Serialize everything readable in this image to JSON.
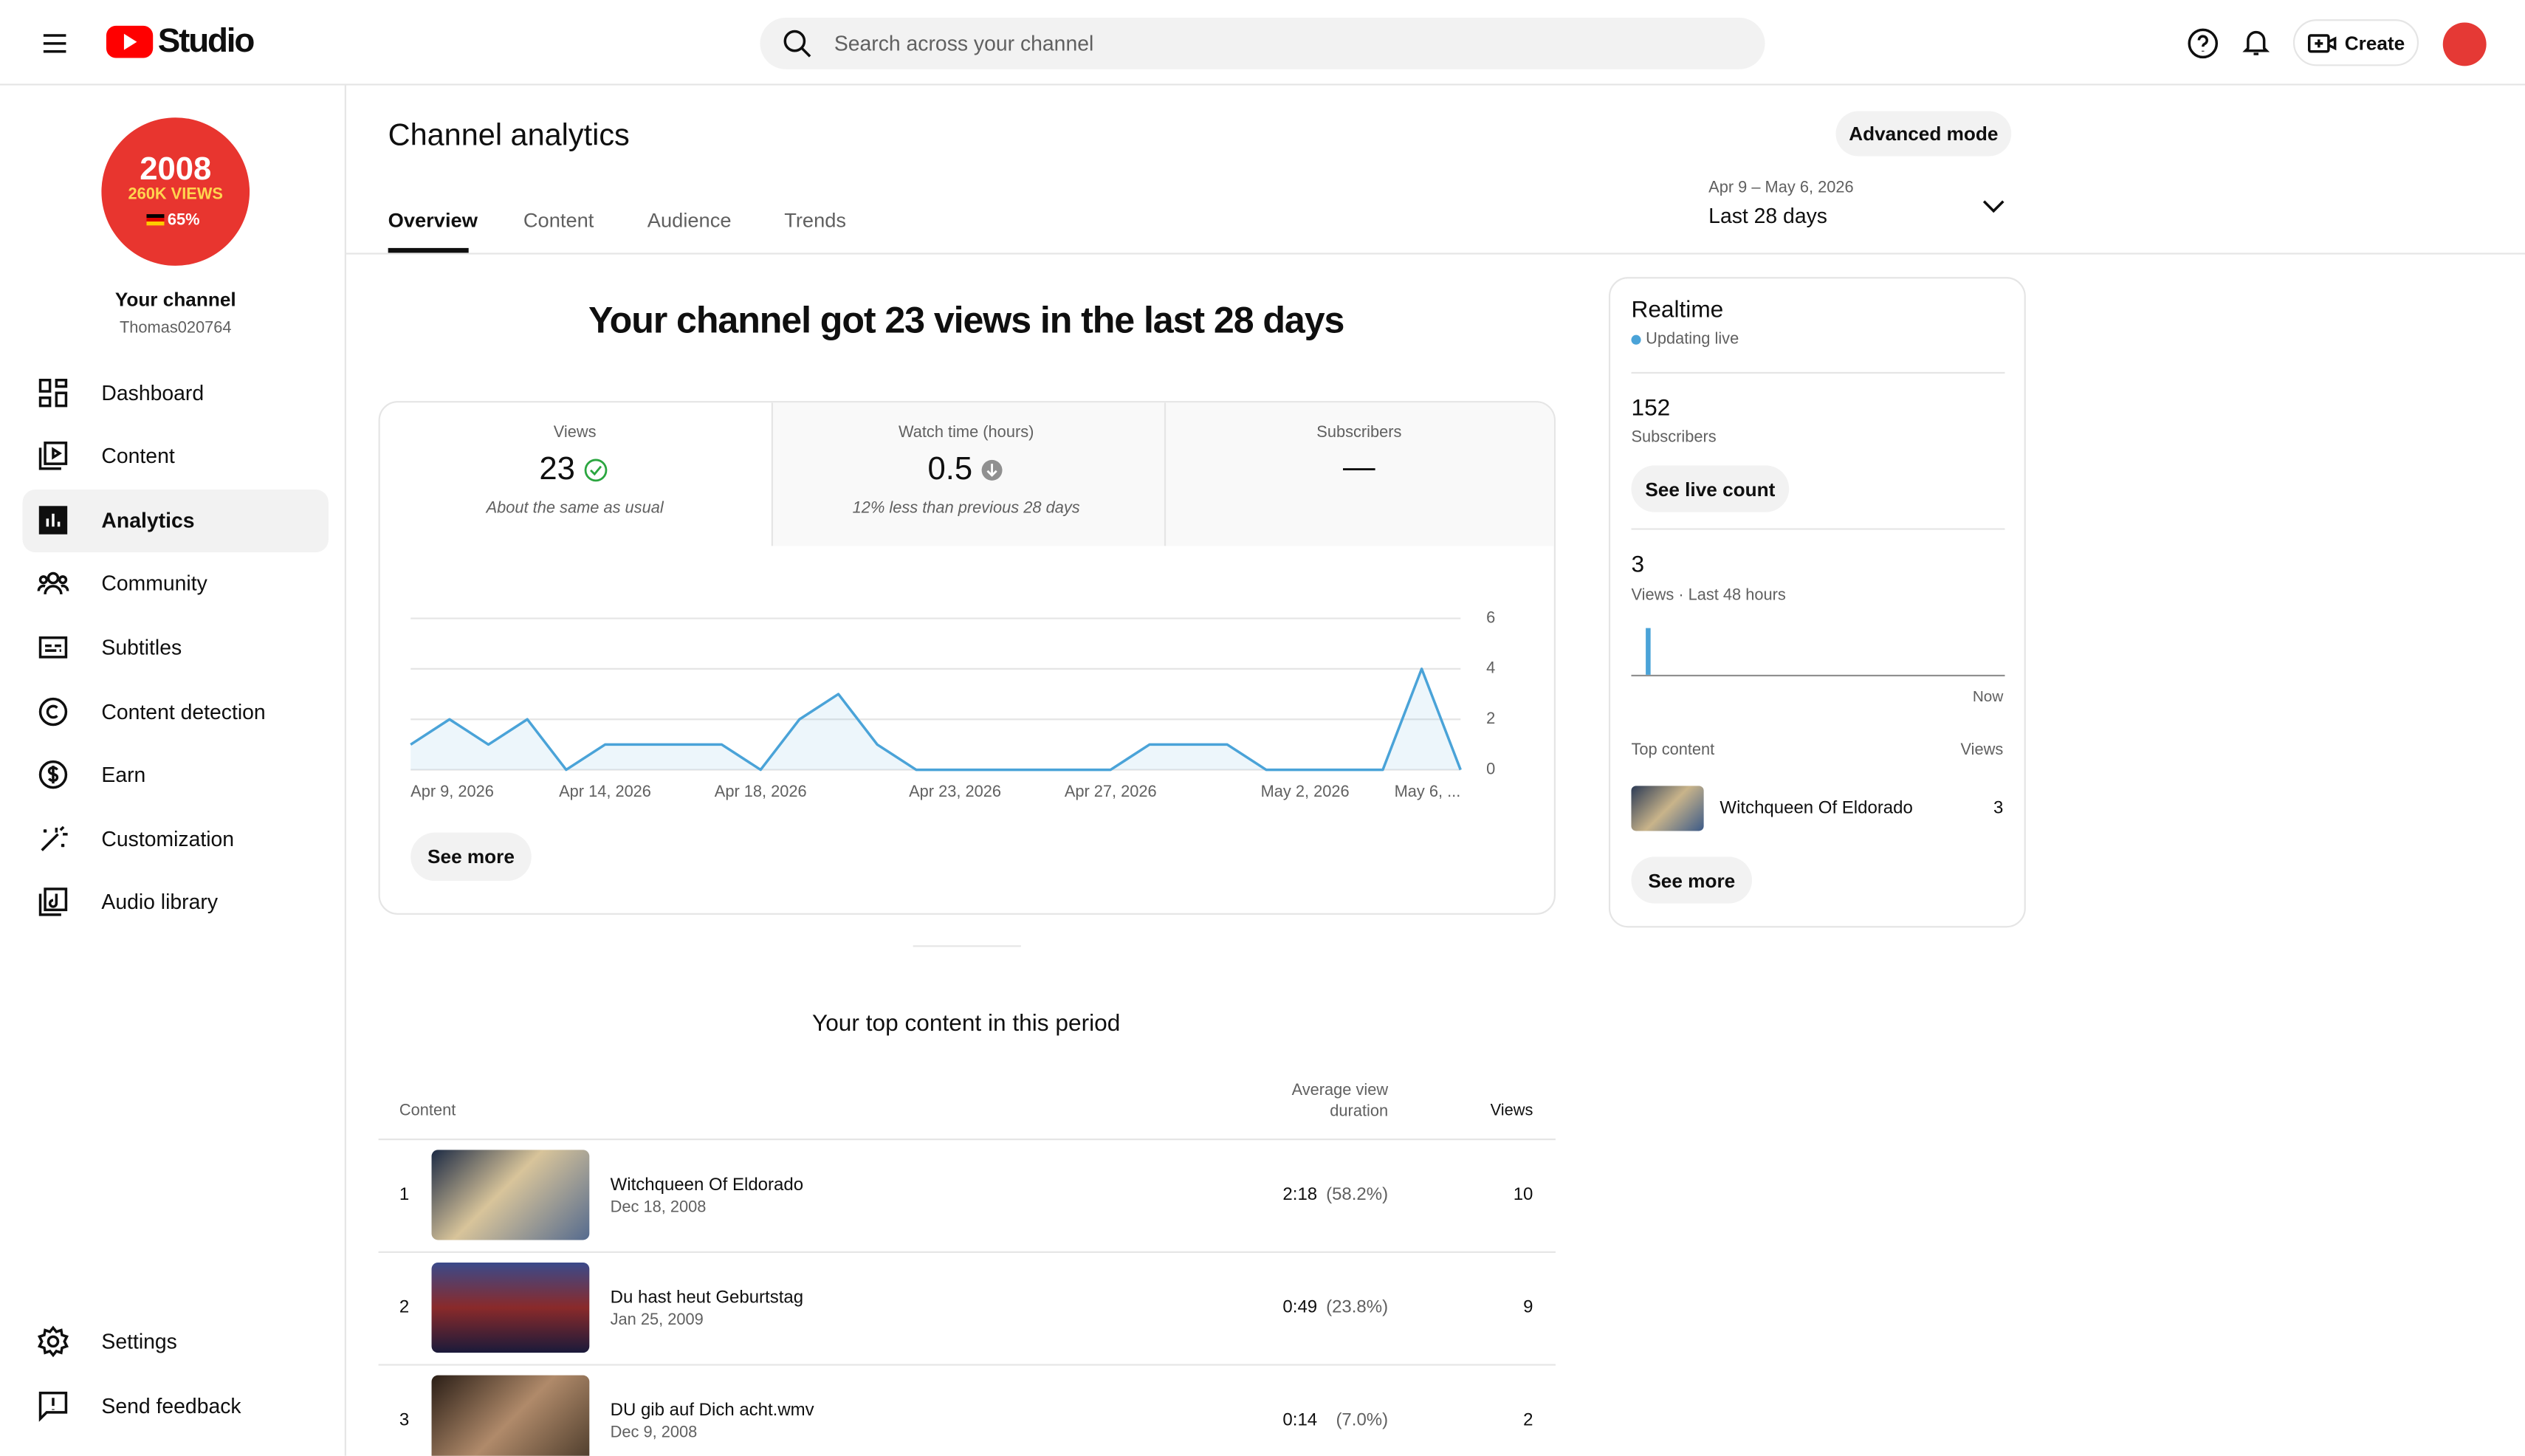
{
  "topbar": {
    "logo_text": "Studio",
    "search_placeholder": "Search across your channel",
    "create": "Create"
  },
  "avatar": {
    "line1": "2008",
    "line2": "260K VIEWS",
    "line3": "65%"
  },
  "sidebar": {
    "channel_name": "Your channel",
    "handle": "Thomas020764",
    "nav": [
      "Dashboard",
      "Content",
      "Analytics",
      "Community",
      "Subtitles",
      "Content detection",
      "Earn",
      "Customization",
      "Audio library"
    ],
    "bottom": [
      "Settings",
      "Send feedback"
    ]
  },
  "header": {
    "title": "Channel analytics",
    "advanced": "Advanced mode",
    "tabs": [
      "Overview",
      "Content",
      "Audience",
      "Trends"
    ],
    "date_range": "Apr 9 – May 6, 2026",
    "period": "Last 28 days"
  },
  "summary": {
    "headline": "Your channel got 23 views in the last 28 days",
    "metrics": [
      {
        "label": "Views",
        "value": "23",
        "note": "About the same as usual"
      },
      {
        "label": "Watch time (hours)",
        "value": "0.5",
        "note": "12% less than previous 28 days"
      },
      {
        "label": "Subscribers",
        "value": "—"
      }
    ],
    "see_more": "See more"
  },
  "chart_data": {
    "type": "line",
    "categories": [
      "Apr 9, 2026",
      null,
      null,
      null,
      null,
      "Apr 14, 2026",
      null,
      null,
      null,
      "Apr 18, 2026",
      null,
      null,
      null,
      null,
      "Apr 23, 2026",
      null,
      null,
      null,
      "Apr 27, 2026",
      null,
      null,
      null,
      null,
      "May 2, 2026",
      null,
      null,
      null,
      "May 6, ..."
    ],
    "values": [
      1,
      2,
      1,
      2,
      0,
      1,
      1,
      1,
      1,
      0,
      2,
      3,
      1,
      0,
      0,
      0,
      0,
      0,
      0,
      1,
      1,
      1,
      0,
      0,
      0,
      0,
      4,
      0
    ],
    "color": "#4aa3d8",
    "ylim": [
      0,
      6
    ],
    "yticks": [
      0,
      2,
      4,
      6
    ],
    "grid": true
  },
  "realtime": {
    "title": "Realtime",
    "status": "Updating live",
    "subscribers": "152",
    "subscribers_label": "Subscribers",
    "live_button": "See live count",
    "views": "3",
    "views_label": "Views · Last 48 hours",
    "now": "Now",
    "top_content": "Top content",
    "views_col": "Views",
    "item_title": "Witchqueen Of Eldorado",
    "item_views": "3",
    "see_more": "See more"
  },
  "top_content": {
    "title": "Your top content in this period",
    "columns": [
      "Content",
      "Average view duration",
      "Views"
    ],
    "rows": [
      {
        "rank": "1",
        "title": "Witchqueen Of Eldorado",
        "date": "Dec 18, 2008",
        "duration": "2:18",
        "percent": "(58.2%)",
        "views": "10"
      },
      {
        "rank": "2",
        "title": "Du hast heut Geburtstag",
        "date": "Jan 25, 2009",
        "duration": "0:49",
        "percent": "(23.8%)",
        "views": "9"
      },
      {
        "rank": "3",
        "title": "DU gib auf Dich acht.wmv",
        "date": "Dec 9, 2008",
        "duration": "0:14",
        "percent": "(7.0%)",
        "views": "2"
      }
    ]
  }
}
